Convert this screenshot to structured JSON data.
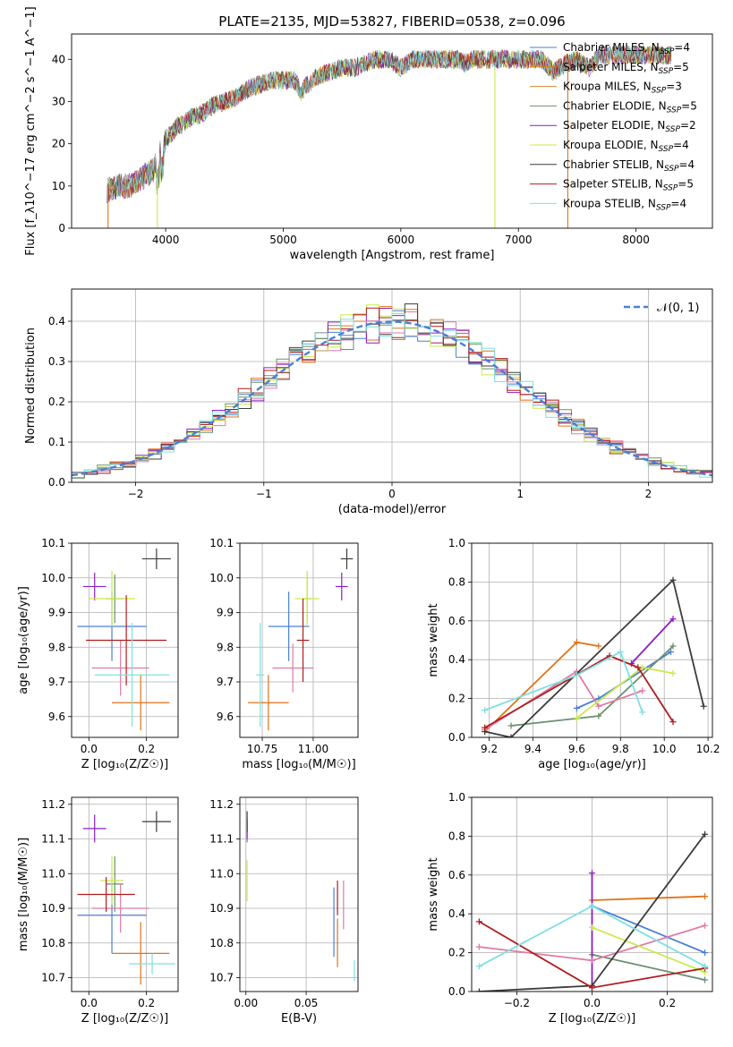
{
  "title": "PLATE=2135, MJD=53827, FIBERID=0538, z=0.096",
  "colors": [
    "#4a7fd6",
    "#e07319",
    "#6b8f6e",
    "#8b1fc5",
    "#e07aa6",
    "#c9ea4a",
    "#3c3c3c",
    "#b01d1d",
    "#7ee0e2"
  ],
  "chart_data": [
    {
      "type": "line",
      "id": "spectrum",
      "title": "PLATE=2135, MJD=53827, FIBERID=0538, z=0.096",
      "xlabel": "wavelength [Angstrom, rest frame]",
      "ylabel": "Flux [f_λ10^−17 erg cm^−2 s^−1 A^−1]",
      "xlim": [
        3200,
        8650
      ],
      "ylim": [
        0,
        46
      ],
      "xticks": [
        4000,
        5000,
        6000,
        7000,
        8000
      ],
      "yticks": [
        0,
        10,
        20,
        30,
        40
      ],
      "legend_position": "top-right",
      "series": [
        {
          "name": "Chabrier MILES, N_SSP=4",
          "color": "#4a7fd6"
        },
        {
          "name": "Salpeter MILES, N_SSP=5",
          "color": "#e07319"
        },
        {
          "name": "Kroupa MILES, N_SSP=3",
          "color": "#d08a30"
        },
        {
          "name": "Chabrier ELODIE, N_SSP=5",
          "color": "#6b8f6e"
        },
        {
          "name": "Salpeter ELODIE, N_SSP=2",
          "color": "#8b1fc5"
        },
        {
          "name": "Kroupa ELODIE, N_SSP=4",
          "color": "#c9ea4a"
        },
        {
          "name": "Chabrier STELIB, N_SSP=4",
          "color": "#3c3c3c"
        },
        {
          "name": "Salpeter STELIB, N_SSP=5",
          "color": "#b01d1d"
        },
        {
          "name": "Kroupa STELIB, N_SSP=4",
          "color": "#7ee0e2"
        }
      ],
      "spectrum_anchors": {
        "x": [
          3500,
          3600,
          3700,
          3800,
          3900,
          3950,
          4000,
          4100,
          4200,
          4300,
          4400,
          4500,
          4600,
          4700,
          4800,
          4900,
          5000,
          5100,
          5150,
          5200,
          5300,
          5400,
          5500,
          5600,
          5700,
          5800,
          5900,
          6000,
          6100,
          6200,
          6300,
          6400,
          6500,
          6550,
          6600,
          6700,
          6800,
          6900,
          7000,
          7100,
          7200,
          7300,
          7400,
          7500,
          7600,
          7700,
          7800,
          7900,
          8000,
          8100,
          8200,
          8300
        ],
        "y": [
          9,
          10,
          10,
          12,
          14,
          18,
          21,
          24,
          26,
          27,
          29,
          30,
          31,
          33,
          34,
          35,
          35,
          35,
          32,
          34,
          36,
          37,
          38,
          38,
          39,
          40,
          40,
          38,
          40,
          40,
          40,
          40,
          40,
          39,
          40,
          40,
          40,
          40,
          40,
          40,
          40,
          37,
          39,
          40,
          38,
          41,
          41,
          41,
          41,
          41,
          41,
          41
        ]
      },
      "spikes": [
        {
          "x": 3510,
          "y_from": 9,
          "y_to": 0,
          "color": "#e07319"
        },
        {
          "x": 3930,
          "y_from": 14,
          "y_to": 0,
          "color": "#c9ea4a"
        },
        {
          "x": 6800,
          "y_from": 38,
          "y_to": 0,
          "color": "#c9ea4a"
        },
        {
          "x": 7420,
          "y_from": 40,
          "y_to": 0,
          "color": "#e07319"
        }
      ]
    },
    {
      "type": "histogram",
      "id": "residuals",
      "xlabel": "(data-model)/error",
      "ylabel": "Normed distribution",
      "xlim": [
        -2.5,
        2.5
      ],
      "ylim": [
        0,
        0.48
      ],
      "xticks": [
        -2,
        -1,
        0,
        1,
        2
      ],
      "yticks": [
        0.0,
        0.1,
        0.2,
        0.3,
        0.4
      ],
      "legend": [
        {
          "name": "𝒩(0, 1)",
          "color": "#4a7fd6",
          "style": "dashed"
        }
      ],
      "legend_position": "top-right",
      "bin_width": 0.1,
      "colors": [
        "#4a7fd6",
        "#e07319",
        "#6b8f6e",
        "#8b1fc5",
        "#e07aa6",
        "#c9ea4a",
        "#3c3c3c",
        "#b01d1d",
        "#7ee0e2"
      ]
    },
    {
      "type": "scatter",
      "id": "age-vs-Z",
      "xlabel": "Z [log₁₀(Z/Z☉)]",
      "ylabel": "age  [log₁₀(age/yr)]",
      "xlim": [
        -0.06,
        0.31
      ],
      "ylim": [
        9.54,
        10.1
      ],
      "xticks": [
        0.0,
        0.2
      ],
      "yticks": [
        9.6,
        9.7,
        9.8,
        9.9,
        10.0,
        10.1
      ],
      "points": [
        {
          "x": 0.08,
          "y": 9.86,
          "xerr": 0.12,
          "yerr": 0.1,
          "color": "#4a7fd6"
        },
        {
          "x": 0.18,
          "y": 9.64,
          "xerr": 0.1,
          "yerr": 0.08,
          "color": "#e07319"
        },
        {
          "x": 0.09,
          "y": 9.94,
          "xerr": 0.03,
          "yerr": 0.07,
          "color": "#6b8f6e"
        },
        {
          "x": 0.02,
          "y": 9.975,
          "xerr": 0.04,
          "yerr": 0.04,
          "color": "#8b1fc5"
        },
        {
          "x": 0.11,
          "y": 9.74,
          "xerr": 0.1,
          "yerr": 0.08,
          "color": "#e07aa6"
        },
        {
          "x": 0.08,
          "y": 9.94,
          "xerr": 0.08,
          "yerr": 0.08,
          "color": "#c9ea4a"
        },
        {
          "x": 0.235,
          "y": 10.055,
          "xerr": 0.05,
          "yerr": 0.03,
          "color": "#3c3c3c"
        },
        {
          "x": 0.13,
          "y": 9.82,
          "xerr": 0.14,
          "yerr": 0.13,
          "color": "#b01d1d"
        },
        {
          "x": 0.15,
          "y": 9.72,
          "xerr": 0.13,
          "yerr": 0.15,
          "color": "#7ee0e2"
        }
      ]
    },
    {
      "type": "scatter",
      "id": "age-vs-mass",
      "xlabel": "mass [log₁₀(M/M☉)]",
      "ylabel": "",
      "xlim": [
        10.64,
        11.22
      ],
      "ylim": [
        9.54,
        10.1
      ],
      "xticks": [
        10.75,
        11.0
      ],
      "yticks": [
        9.6,
        9.7,
        9.8,
        9.9,
        10.0,
        10.1
      ],
      "points": [
        {
          "x": 10.88,
          "y": 9.86,
          "xerr": 0.1,
          "yerr": 0.1,
          "color": "#4a7fd6"
        },
        {
          "x": 10.78,
          "y": 9.64,
          "xerr": 0.1,
          "yerr": 0.08,
          "color": "#e07319"
        },
        {
          "x": 10.97,
          "y": 9.94,
          "xerr": 0.02,
          "yerr": 0.07,
          "color": "#6b8f6e"
        },
        {
          "x": 11.14,
          "y": 9.975,
          "xerr": 0.03,
          "yerr": 0.04,
          "color": "#8b1fc5"
        },
        {
          "x": 10.9,
          "y": 9.74,
          "xerr": 0.1,
          "yerr": 0.07,
          "color": "#e07aa6"
        },
        {
          "x": 10.97,
          "y": 9.94,
          "xerr": 0.06,
          "yerr": 0.08,
          "color": "#c9ea4a"
        },
        {
          "x": 11.165,
          "y": 10.055,
          "xerr": 0.03,
          "yerr": 0.03,
          "color": "#3c3c3c"
        },
        {
          "x": 10.95,
          "y": 9.82,
          "xerr": 0.03,
          "yerr": 0.12,
          "color": "#b01d1d"
        },
        {
          "x": 10.74,
          "y": 9.72,
          "xerr": 0.02,
          "yerr": 0.15,
          "color": "#7ee0e2"
        }
      ]
    },
    {
      "type": "line",
      "id": "weight-vs-age",
      "xlabel": "age  [log₁₀(age/yr)]",
      "ylabel": "mass weight",
      "xlim": [
        9.12,
        10.22
      ],
      "ylim": [
        0,
        1.0
      ],
      "xticks": [
        9.2,
        9.4,
        9.6,
        9.8,
        10.0,
        10.2
      ],
      "yticks": [
        0.0,
        0.2,
        0.4,
        0.6,
        0.8,
        1.0
      ],
      "series": [
        {
          "color": "#4a7fd6",
          "x": [
            9.6,
            9.7,
            10.03
          ],
          "y": [
            0.15,
            0.2,
            0.44
          ]
        },
        {
          "color": "#e07319",
          "x": [
            9.18,
            9.6,
            9.7
          ],
          "y": [
            0.03,
            0.49,
            0.47
          ]
        },
        {
          "color": "#6b8f6e",
          "x": [
            9.3,
            9.7,
            10.04
          ],
          "y": [
            0.06,
            0.11,
            0.47
          ]
        },
        {
          "color": "#8b1fc5",
          "x": [
            9.85,
            10.04
          ],
          "y": [
            0.38,
            0.61
          ]
        },
        {
          "color": "#e07aa6",
          "x": [
            9.18,
            9.6,
            9.7,
            9.9
          ],
          "y": [
            0.04,
            0.34,
            0.16,
            0.24
          ]
        },
        {
          "color": "#c9ea4a",
          "x": [
            9.6,
            9.9,
            10.04
          ],
          "y": [
            0.1,
            0.36,
            0.33
          ]
        },
        {
          "color": "#3c3c3c",
          "x": [
            9.18,
            9.3,
            10.04,
            10.18
          ],
          "y": [
            0.03,
            0.0,
            0.81,
            0.16
          ]
        },
        {
          "color": "#b01d1d",
          "x": [
            9.18,
            9.75,
            9.88,
            10.04
          ],
          "y": [
            0.05,
            0.42,
            0.36,
            0.08
          ]
        },
        {
          "color": "#7ee0e2",
          "x": [
            9.18,
            9.6,
            9.8,
            9.9
          ],
          "y": [
            0.14,
            0.32,
            0.44,
            0.13
          ]
        }
      ]
    },
    {
      "type": "scatter",
      "id": "mass-vs-Z",
      "xlabel": "Z [log₁₀(Z/Z☉)]",
      "ylabel": "mass [log₁₀(M/M☉)]",
      "xlim": [
        -0.06,
        0.31
      ],
      "ylim": [
        10.66,
        11.22
      ],
      "xticks": [
        0.0,
        0.2
      ],
      "yticks": [
        10.7,
        10.8,
        10.9,
        11.0,
        11.1,
        11.2
      ],
      "points": [
        {
          "x": 0.08,
          "y": 10.88,
          "xerr": 0.12,
          "yerr": 0.11,
          "color": "#4a7fd6"
        },
        {
          "x": 0.18,
          "y": 10.77,
          "xerr": 0.1,
          "yerr": 0.09,
          "color": "#e07319"
        },
        {
          "x": 0.09,
          "y": 10.97,
          "xerr": 0.03,
          "yerr": 0.08,
          "color": "#6b8f6e"
        },
        {
          "x": 0.02,
          "y": 11.13,
          "xerr": 0.04,
          "yerr": 0.04,
          "color": "#8b1fc5"
        },
        {
          "x": 0.11,
          "y": 10.9,
          "xerr": 0.1,
          "yerr": 0.07,
          "color": "#e07aa6"
        },
        {
          "x": 0.08,
          "y": 10.98,
          "xerr": 0.04,
          "yerr": 0.07,
          "color": "#c9ea4a"
        },
        {
          "x": 0.235,
          "y": 11.15,
          "xerr": 0.05,
          "yerr": 0.03,
          "color": "#3c3c3c"
        },
        {
          "x": 0.06,
          "y": 10.94,
          "xerr": 0.1,
          "yerr": 0.05,
          "color": "#b01d1d"
        },
        {
          "x": 0.22,
          "y": 10.74,
          "xerr": 0.08,
          "yerr": 0.03,
          "color": "#7ee0e2"
        }
      ]
    },
    {
      "type": "scatter",
      "id": "mass-vs-ebv",
      "xlabel": "E(B-V)",
      "ylabel": "",
      "xlim": [
        -0.005,
        0.093
      ],
      "ylim": [
        10.66,
        11.22
      ],
      "xticks": [
        0.0,
        0.05
      ],
      "yticks": [
        10.7,
        10.8,
        10.9,
        11.0,
        11.1,
        11.2
      ],
      "points": [
        {
          "x": 0.073,
          "y": 10.86,
          "yerr": 0.1,
          "color": "#4a7fd6"
        },
        {
          "x": 0.076,
          "y": 10.8,
          "yerr": 0.07,
          "color": "#e07319"
        },
        {
          "x": 0.001,
          "y": 11.12,
          "yerr": 0.03,
          "color": "#6b8f6e"
        },
        {
          "x": 0.001,
          "y": 11.13,
          "yerr": 0.03,
          "color": "#8b1fc5"
        },
        {
          "x": 0.081,
          "y": 10.91,
          "yerr": 0.07,
          "color": "#e07aa6"
        },
        {
          "x": 0.001,
          "y": 10.98,
          "yerr": 0.06,
          "color": "#c9ea4a"
        },
        {
          "x": 0.001,
          "y": 11.15,
          "yerr": 0.03,
          "color": "#3c3c3c"
        },
        {
          "x": 0.076,
          "y": 10.93,
          "yerr": 0.05,
          "color": "#b01d1d"
        },
        {
          "x": 0.09,
          "y": 10.72,
          "yerr": 0.03,
          "color": "#7ee0e2"
        }
      ]
    },
    {
      "type": "line",
      "id": "weight-vs-Z",
      "xlabel": "Z [log₁₀(Z/Z☉)]",
      "ylabel": "mass weight",
      "xlim": [
        -0.32,
        0.32
      ],
      "ylim": [
        0,
        1.0
      ],
      "xticks": [
        -0.2,
        0.0,
        0.2
      ],
      "yticks": [
        0.0,
        0.2,
        0.4,
        0.6,
        0.8,
        1.0
      ],
      "series": [
        {
          "color": "#4a7fd6",
          "x": [
            0.0,
            0.3
          ],
          "y": [
            0.44,
            0.2
          ]
        },
        {
          "color": "#e07319",
          "x": [
            0.0,
            0.3
          ],
          "y": [
            0.47,
            0.49
          ]
        },
        {
          "color": "#6b8f6e",
          "x": [
            0.0,
            0.3
          ],
          "y": [
            0.19,
            0.06
          ]
        },
        {
          "color": "#8b1fc5",
          "x": [
            0.0,
            0.0
          ],
          "y": [
            0.02,
            0.61
          ]
        },
        {
          "color": "#e07aa6",
          "x": [
            -0.3,
            0.0,
            0.3
          ],
          "y": [
            0.23,
            0.16,
            0.34
          ]
        },
        {
          "color": "#c9ea4a",
          "x": [
            0.0,
            0.3
          ],
          "y": [
            0.33,
            0.1
          ]
        },
        {
          "color": "#3c3c3c",
          "x": [
            -0.3,
            0.0,
            0.3
          ],
          "y": [
            0.0,
            0.03,
            0.81
          ]
        },
        {
          "color": "#b01d1d",
          "x": [
            -0.3,
            0.0,
            0.3
          ],
          "y": [
            0.36,
            0.02,
            0.12
          ]
        },
        {
          "color": "#7ee0e2",
          "x": [
            -0.3,
            0.0,
            0.3
          ],
          "y": [
            0.13,
            0.44,
            0.13
          ]
        }
      ]
    }
  ]
}
